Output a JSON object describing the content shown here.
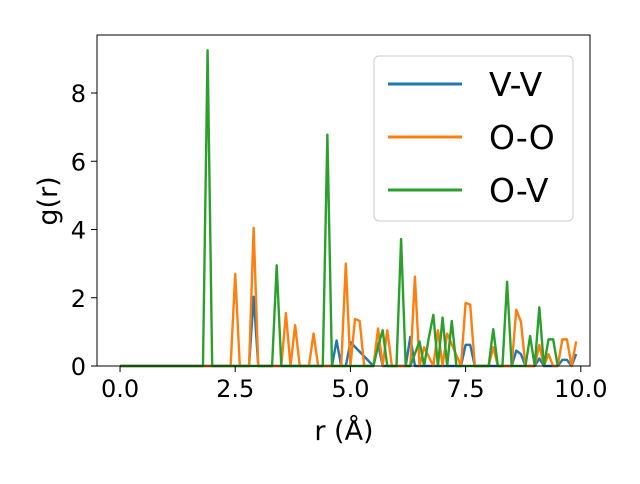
{
  "chart_data": {
    "type": "line",
    "title": "",
    "xlabel": "r (Å)",
    "ylabel": "g(r)",
    "xlim": [
      -0.5,
      10.2
    ],
    "ylim": [
      0,
      9.7
    ],
    "x_ticks": [
      0.0,
      2.5,
      5.0,
      7.5,
      10.0
    ],
    "x_tick_labels": [
      "0.0",
      "2.5",
      "5.0",
      "7.5",
      "10.0"
    ],
    "y_ticks": [
      0,
      2,
      4,
      6,
      8
    ],
    "y_tick_labels": [
      "0",
      "2",
      "4",
      "6",
      "8"
    ],
    "grid": false,
    "legend_position": "top-right",
    "series": [
      {
        "name": "V-V",
        "color": "#1f77b4",
        "x": [
          0.0,
          2.8,
          2.9,
          3.0,
          4.6,
          4.7,
          4.8,
          4.9,
          5.0,
          5.5,
          5.6,
          5.7,
          5.8,
          6.2,
          6.3,
          6.4,
          6.5,
          7.4,
          7.5,
          7.6,
          7.7,
          8.5,
          8.6,
          8.7,
          8.8,
          9.0,
          9.1,
          9.2,
          9.3,
          9.5,
          9.6,
          9.7,
          9.8,
          9.9
        ],
        "y": [
          0.0,
          0.0,
          2.03,
          0.0,
          0.0,
          0.75,
          0.0,
          0.0,
          0.7,
          0.0,
          0.65,
          0.0,
          0.0,
          0.0,
          0.85,
          0.0,
          0.0,
          0.0,
          0.62,
          0.62,
          0.0,
          0.0,
          0.45,
          0.35,
          0.0,
          0.0,
          0.22,
          0.0,
          0.0,
          0.0,
          0.18,
          0.18,
          0.0,
          0.35
        ]
      },
      {
        "name": "O-O",
        "color": "#ff7f0e",
        "x": [
          0.0,
          2.4,
          2.5,
          2.6,
          2.8,
          2.9,
          3.0,
          3.5,
          3.6,
          3.7,
          3.8,
          3.9,
          4.1,
          4.2,
          4.3,
          4.8,
          4.9,
          5.0,
          5.1,
          5.2,
          5.3,
          5.5,
          5.6,
          5.7,
          5.8,
          5.9,
          6.3,
          6.4,
          6.5,
          6.6,
          6.8,
          6.9,
          7.0,
          7.1,
          7.4,
          7.5,
          7.6,
          7.7,
          8.0,
          8.1,
          8.2,
          8.5,
          8.6,
          8.7,
          8.8,
          9.0,
          9.1,
          9.2,
          9.3,
          9.4,
          9.5,
          9.6,
          9.7,
          9.8,
          9.9
        ],
        "y": [
          0.0,
          0.0,
          2.7,
          0.0,
          0.0,
          4.05,
          0.0,
          0.0,
          1.55,
          0.0,
          1.2,
          0.0,
          0.0,
          0.95,
          0.0,
          0.0,
          3.0,
          0.0,
          1.38,
          1.32,
          0.0,
          0.0,
          1.1,
          0.0,
          1.05,
          0.0,
          0.0,
          2.62,
          0.0,
          0.55,
          0.0,
          1.05,
          0.0,
          0.95,
          0.0,
          1.85,
          1.8,
          0.0,
          0.0,
          0.55,
          0.0,
          0.0,
          1.65,
          1.3,
          0.0,
          0.0,
          0.62,
          0.0,
          0.35,
          0.0,
          0.0,
          0.78,
          0.78,
          0.0,
          0.72
        ]
      },
      {
        "name": "O-V",
        "color": "#2ca02c",
        "x": [
          0.0,
          1.8,
          1.9,
          2.0,
          3.3,
          3.4,
          3.5,
          4.4,
          4.5,
          4.6,
          5.5,
          5.6,
          5.7,
          5.8,
          6.0,
          6.1,
          6.2,
          6.3,
          6.5,
          6.6,
          6.7,
          6.8,
          6.9,
          7.0,
          7.1,
          7.2,
          7.3,
          7.4,
          8.0,
          8.1,
          8.2,
          8.3,
          8.4,
          8.5,
          8.7,
          8.8,
          8.9,
          9.0,
          9.1,
          9.2,
          9.3,
          9.4,
          9.5
        ],
        "y": [
          0.0,
          0.0,
          9.25,
          0.0,
          0.0,
          2.95,
          0.0,
          0.0,
          6.78,
          0.0,
          0.0,
          0.58,
          1.05,
          0.0,
          0.0,
          3.72,
          0.0,
          0.0,
          0.72,
          0.0,
          0.82,
          1.5,
          0.0,
          1.42,
          0.0,
          1.32,
          0.0,
          0.0,
          0.0,
          1.08,
          0.0,
          0.0,
          2.47,
          0.0,
          0.0,
          0.0,
          0.88,
          0.0,
          1.72,
          0.0,
          0.78,
          0.78,
          0.0
        ]
      }
    ]
  }
}
